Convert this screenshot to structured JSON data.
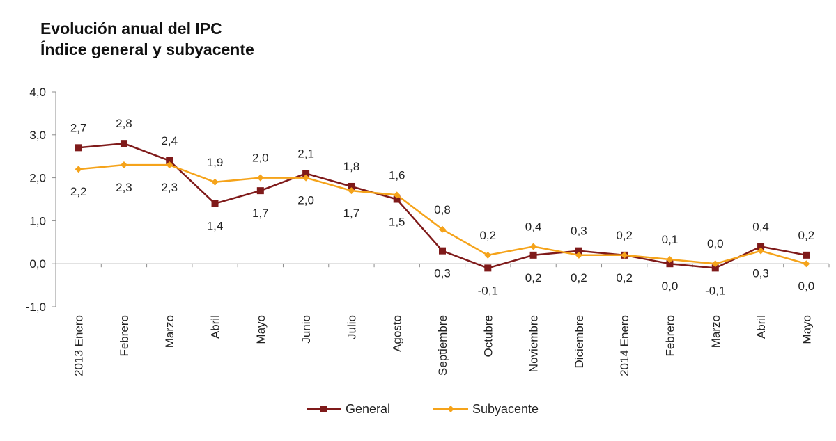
{
  "title": "Evolución anual del IPC",
  "subtitle": "Índice general y subyacente",
  "chart_data": {
    "type": "line",
    "categories": [
      "2013 Enero",
      "Febrero",
      "Marzo",
      "Abril",
      "Mayo",
      "Junio",
      "Julio",
      "Agosto",
      "Septiembre",
      "Octubre",
      "Noviembre",
      "Diciembre",
      "2014 Enero",
      "Febrero",
      "Marzo",
      "Abril",
      "Mayo"
    ],
    "series": [
      {
        "name": "General",
        "color": "#7f1a1a",
        "marker": "square",
        "values": [
          2.7,
          2.8,
          2.4,
          1.4,
          1.7,
          2.1,
          1.8,
          1.5,
          0.3,
          -0.1,
          0.2,
          0.3,
          0.2,
          0.0,
          -0.1,
          0.4,
          0.2
        ],
        "labels": [
          "2,7",
          "2,8",
          "2,4",
          "1,4",
          "1,7",
          "2,1",
          "1,8",
          "1,5",
          "0,3",
          "-0,1",
          "0,2",
          "0,3",
          "0,2",
          "0,0",
          "-0,1",
          "0,4",
          "0,2"
        ]
      },
      {
        "name": "Subyacente",
        "color": "#f5a31a",
        "marker": "diamond",
        "values": [
          2.2,
          2.3,
          2.3,
          1.9,
          2.0,
          2.0,
          1.7,
          1.6,
          0.8,
          0.2,
          0.4,
          0.2,
          0.2,
          0.1,
          0.0,
          0.3,
          0.0
        ],
        "labels": [
          "2,2",
          "2,3",
          "2,3",
          "1,9",
          "2,0",
          "2,0",
          "1,7",
          "1,6",
          "0,8",
          "0,2",
          "0,4",
          "0,2",
          "0,2",
          "0,1",
          "0,0",
          "0,3",
          "0,0"
        ]
      }
    ],
    "ylim": [
      -1.0,
      4.0
    ],
    "yticks": [
      "4,0",
      "3,0",
      "2,0",
      "1,0",
      "0,0",
      "-1,0"
    ],
    "grid": false,
    "legend_position": "bottom"
  }
}
